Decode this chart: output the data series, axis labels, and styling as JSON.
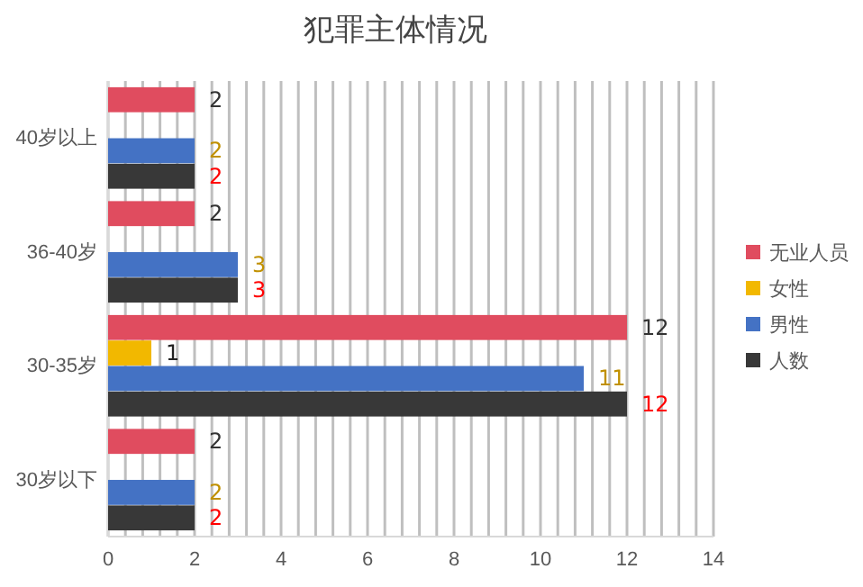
{
  "chart_data": {
    "type": "bar",
    "orientation": "horizontal",
    "title": "犯罪主体情况",
    "categories": [
      "40岁以上",
      "36-40岁",
      "30-35岁",
      "30岁以下"
    ],
    "series": [
      {
        "name": "无业人员",
        "color": "#e04c5f",
        "values": [
          2,
          2,
          12,
          2
        ],
        "value_labels": [
          "2",
          "2",
          "12",
          "2"
        ]
      },
      {
        "name": "女性",
        "color": "#f2b800",
        "values": [
          null,
          null,
          1,
          null
        ],
        "value_labels": [
          null,
          null,
          "1",
          null
        ]
      },
      {
        "name": "男性",
        "color": "#4472c4",
        "values": [
          2,
          3,
          11,
          2
        ],
        "value_labels": [
          "2",
          "3",
          "11",
          "2"
        ]
      },
      {
        "name": "人数",
        "color": "#383838",
        "values": [
          2,
          3,
          12,
          2
        ],
        "value_labels": [
          "2",
          "3",
          "12",
          "2"
        ]
      }
    ],
    "xlim": [
      0,
      14
    ],
    "xticks": [
      0,
      {
        "value": 0.4,
        "label": null
      },
      {
        "value": 0.8,
        "label": null
      },
      {
        "value": 1.2,
        "label": null
      },
      {
        "value": 1.6,
        "label": null
      },
      2,
      {
        "value": 2.4,
        "label": null
      },
      {
        "value": 2.8,
        "label": null
      },
      {
        "value": 3.2,
        "label": null
      },
      {
        "value": 3.6,
        "label": null
      },
      4,
      {
        "value": 4.4,
        "label": null
      },
      {
        "value": 4.8,
        "label": null
      },
      {
        "value": 5.2,
        "label": null
      },
      {
        "value": 5.6,
        "label": null
      },
      6,
      {
        "value": 6.4,
        "label": null
      },
      {
        "value": 6.8,
        "label": null
      },
      {
        "value": 7.2,
        "label": null
      },
      {
        "value": 7.6,
        "label": null
      },
      8,
      {
        "value": 8.4,
        "label": null
      },
      {
        "value": 8.8,
        "label": null
      },
      {
        "value": 9.2,
        "label": null
      },
      {
        "value": 9.6,
        "label": null
      },
      10,
      {
        "value": 10.4,
        "label": null
      },
      {
        "value": 10.8,
        "label": null
      },
      {
        "value": 11.2,
        "label": null
      },
      {
        "value": 11.6,
        "label": null
      },
      12,
      {
        "value": 12.4,
        "label": null
      },
      {
        "value": 12.8,
        "label": null
      },
      {
        "value": 13.2,
        "label": null
      },
      {
        "value": 13.6,
        "label": null
      },
      14
    ],
    "grid": "x",
    "legend": "right"
  }
}
